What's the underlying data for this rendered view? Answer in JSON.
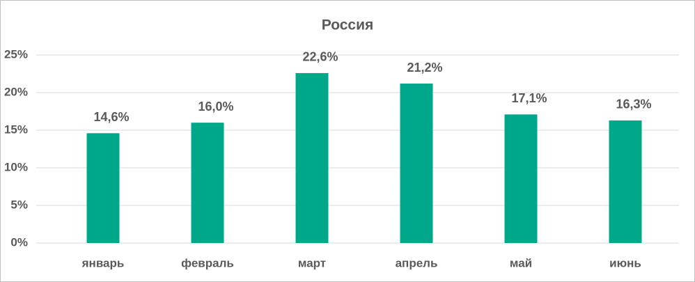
{
  "chart_data": {
    "type": "bar",
    "title": "Россия",
    "categories": [
      "январь",
      "февраль",
      "март",
      "апрель",
      "май",
      "июнь"
    ],
    "values": [
      14.6,
      16.0,
      22.6,
      21.2,
      17.1,
      16.3
    ],
    "value_labels": [
      "14,6%",
      "16,0%",
      "22,6%",
      "21,2%",
      "17,1%",
      "16,3%"
    ],
    "color": "#00a88a",
    "ylim": [
      0,
      25
    ],
    "yticks": [
      {
        "value": 0,
        "label": "0%"
      },
      {
        "value": 5,
        "label": "5%"
      },
      {
        "value": 10,
        "label": "10%"
      },
      {
        "value": 15,
        "label": "15%"
      },
      {
        "value": 20,
        "label": "20%"
      },
      {
        "value": 25,
        "label": "25%"
      }
    ],
    "grid": true
  }
}
